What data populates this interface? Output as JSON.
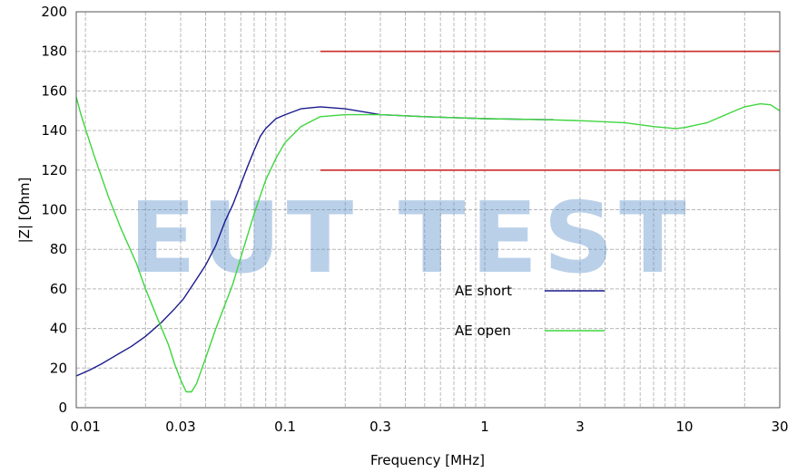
{
  "watermark": "EUT TEST",
  "chart_data": {
    "type": "line",
    "xlabel": "Frequency [MHz]",
    "ylabel": "|Z| [Ohm]",
    "xscale": "log",
    "xlim": [
      0.009,
      30
    ],
    "ylim": [
      0,
      200
    ],
    "x_ticks": [
      {
        "value": 0.01,
        "label": "0.01"
      },
      {
        "value": 0.03,
        "label": "0.03"
      },
      {
        "value": 0.1,
        "label": "0.1"
      },
      {
        "value": 0.3,
        "label": "0.3"
      },
      {
        "value": 1,
        "label": "1"
      },
      {
        "value": 3,
        "label": "3"
      },
      {
        "value": 10,
        "label": "10"
      },
      {
        "value": 30,
        "label": "30"
      }
    ],
    "y_ticks": [
      0,
      20,
      40,
      60,
      80,
      100,
      120,
      140,
      160,
      180,
      200
    ],
    "grid": true,
    "legend_position": "center-right",
    "limit_lines": [
      {
        "y": 180,
        "x_from": 0.15,
        "x_to": 30,
        "color": "#cc2a2a"
      },
      {
        "y": 120,
        "x_from": 0.15,
        "x_to": 30,
        "color": "#cc2a2a"
      }
    ],
    "series": [
      {
        "name": "AE short",
        "color": "#1a1a8c",
        "points": [
          [
            0.009,
            16
          ],
          [
            0.0105,
            19
          ],
          [
            0.012,
            22
          ],
          [
            0.014,
            26
          ],
          [
            0.017,
            31
          ],
          [
            0.02,
            36
          ],
          [
            0.024,
            43
          ],
          [
            0.028,
            50
          ],
          [
            0.031,
            55
          ],
          [
            0.035,
            63
          ],
          [
            0.04,
            72
          ],
          [
            0.045,
            82
          ],
          [
            0.05,
            94
          ],
          [
            0.055,
            103
          ],
          [
            0.06,
            113
          ],
          [
            0.065,
            122
          ],
          [
            0.07,
            130
          ],
          [
            0.075,
            137
          ],
          [
            0.08,
            141
          ],
          [
            0.09,
            146
          ],
          [
            0.1,
            148
          ],
          [
            0.12,
            151
          ],
          [
            0.15,
            152
          ],
          [
            0.2,
            151
          ],
          [
            0.3,
            148
          ],
          [
            0.5,
            147
          ],
          [
            1,
            146
          ],
          [
            2,
            145.5
          ],
          [
            2.2,
            145.5
          ]
        ]
      },
      {
        "name": "AE open",
        "color": "#3ed63e",
        "points": [
          [
            0.009,
            157
          ],
          [
            0.0095,
            148
          ],
          [
            0.011,
            128
          ],
          [
            0.013,
            107
          ],
          [
            0.015,
            91
          ],
          [
            0.018,
            73
          ],
          [
            0.02,
            60
          ],
          [
            0.023,
            45
          ],
          [
            0.026,
            32
          ],
          [
            0.028,
            22
          ],
          [
            0.03,
            14
          ],
          [
            0.032,
            8
          ],
          [
            0.034,
            8
          ],
          [
            0.036,
            12
          ],
          [
            0.04,
            25
          ],
          [
            0.045,
            40
          ],
          [
            0.05,
            52
          ],
          [
            0.055,
            63
          ],
          [
            0.06,
            76
          ],
          [
            0.07,
            98
          ],
          [
            0.08,
            115
          ],
          [
            0.09,
            126
          ],
          [
            0.1,
            134
          ],
          [
            0.12,
            142
          ],
          [
            0.15,
            147
          ],
          [
            0.2,
            148
          ],
          [
            0.3,
            148
          ],
          [
            0.5,
            147
          ],
          [
            1,
            146
          ],
          [
            2,
            145.5
          ],
          [
            3,
            145
          ],
          [
            5,
            144
          ],
          [
            7,
            142
          ],
          [
            9,
            141
          ],
          [
            10,
            141.5
          ],
          [
            13,
            144
          ],
          [
            17,
            149
          ],
          [
            20,
            152
          ],
          [
            24,
            153.5
          ],
          [
            27,
            153
          ],
          [
            30,
            150
          ]
        ]
      }
    ]
  }
}
